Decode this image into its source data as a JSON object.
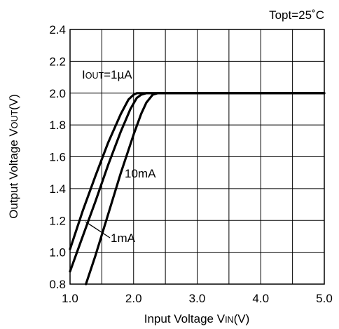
{
  "chart_data": {
    "type": "line",
    "title": "",
    "condition": "Topt=25˚C",
    "xlabel": {
      "main": "Input Voltage V",
      "sub": "IN",
      "unit": "(V)"
    },
    "ylabel": {
      "main": "Output Voltage V",
      "sub": "OUT",
      "unit": "(V)"
    },
    "xlim": [
      1.0,
      5.0
    ],
    "ylim": [
      0.8,
      2.4
    ],
    "xticks": [
      "1.0",
      "2.0",
      "3.0",
      "4.0",
      "5.0"
    ],
    "yticks": [
      "0.8",
      "1.0",
      "1.2",
      "1.4",
      "1.6",
      "1.8",
      "2.0",
      "2.2",
      "2.4"
    ],
    "grid": true,
    "series": [
      {
        "name": "1µA",
        "x": [
          0.98,
          1.2,
          1.4,
          1.6,
          1.8,
          1.92,
          2.0,
          2.05,
          2.1,
          2.2,
          5.0
        ],
        "y": [
          1.02,
          1.26,
          1.48,
          1.69,
          1.87,
          1.96,
          1.99,
          2.0,
          2.0,
          2.0,
          2.0
        ]
      },
      {
        "name": "1mA",
        "x": [
          1.0,
          1.2,
          1.4,
          1.6,
          1.8,
          1.95,
          2.05,
          2.12,
          2.2,
          2.3,
          5.0
        ],
        "y": [
          0.88,
          1.1,
          1.32,
          1.55,
          1.76,
          1.9,
          1.97,
          1.99,
          2.0,
          2.0,
          2.0
        ]
      },
      {
        "name": "10mA",
        "x": [
          1.25,
          1.4,
          1.6,
          1.8,
          2.0,
          2.12,
          2.2,
          2.3,
          2.38,
          2.45,
          5.0
        ],
        "y": [
          0.8,
          0.98,
          1.24,
          1.5,
          1.74,
          1.87,
          1.94,
          1.99,
          2.0,
          2.0,
          2.0
        ]
      }
    ],
    "annotations": {
      "iout_label": {
        "prefix": "I",
        "sub": "OUT",
        "rest": "=1µA"
      },
      "label_10mA": "10mA",
      "label_1mA": "1mA"
    }
  }
}
